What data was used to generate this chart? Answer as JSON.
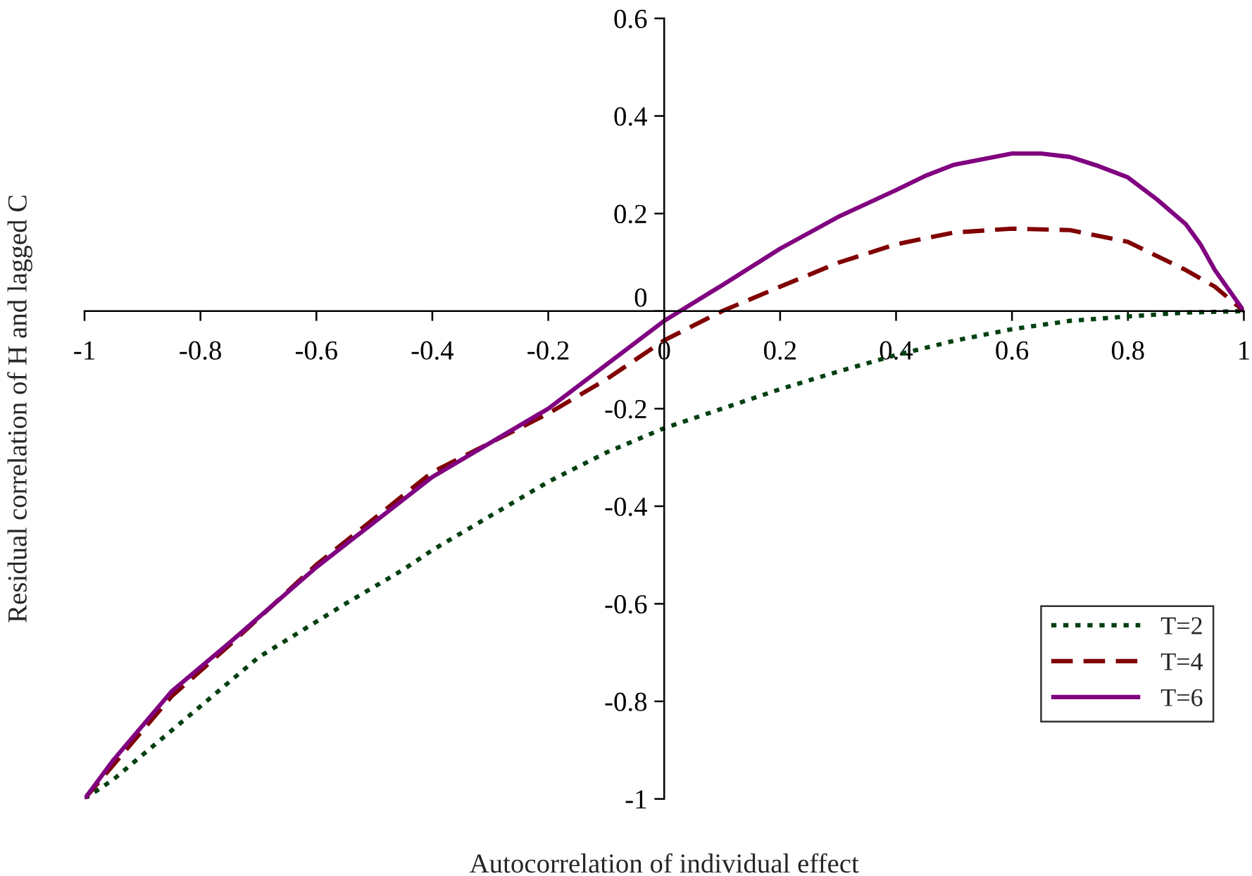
{
  "chart_data": {
    "type": "line",
    "xlabel": "Autocorrelation of individual effect",
    "ylabel": "Residual correlation of H and lagged C",
    "xlim": [
      -1,
      1
    ],
    "ylim": [
      -1,
      0.6
    ],
    "xticks": [
      -1,
      -0.8,
      -0.6,
      -0.4,
      -0.2,
      0,
      0.2,
      0.4,
      0.6,
      0.8,
      1
    ],
    "yticks": [
      -1,
      -0.8,
      -0.6,
      -0.4,
      -0.2,
      0,
      0.2,
      0.4,
      0.6
    ],
    "grid": false,
    "legend": "bottom right",
    "marker": "none",
    "series": [
      {
        "name": "T=2",
        "color": "#004010",
        "line_style": "dotted",
        "x": [
          -1,
          -0.95,
          -0.85,
          -0.7,
          -0.55,
          -0.45,
          -0.4,
          -0.3,
          -0.2,
          -0.1,
          0,
          0.1,
          0.2,
          0.3,
          0.4,
          0.5,
          0.6,
          0.7,
          0.8,
          0.9,
          1
        ],
        "values": [
          -1,
          -0.96,
          -0.86,
          -0.71,
          -0.6,
          -0.53,
          -0.49,
          -0.42,
          -0.35,
          -0.29,
          -0.24,
          -0.2,
          -0.16,
          -0.124,
          -0.09,
          -0.061,
          -0.037,
          -0.02,
          -0.011,
          -0.003,
          0
        ]
      },
      {
        "name": "T=4",
        "color": "#800000",
        "line_style": "dashed",
        "x": [
          -1,
          -0.85,
          -0.75,
          -0.6,
          -0.4,
          -0.2,
          -0.1,
          0,
          0.1,
          0.2,
          0.3,
          0.4,
          0.5,
          0.6,
          0.7,
          0.8,
          0.9,
          0.95,
          1
        ],
        "values": [
          -1,
          -0.79,
          -0.685,
          -0.52,
          -0.33,
          -0.21,
          -0.14,
          -0.06,
          0,
          0.05,
          0.099,
          0.137,
          0.161,
          0.169,
          0.166,
          0.142,
          0.084,
          0.05,
          0
        ]
      },
      {
        "name": "T=6",
        "color": "#800080",
        "line_style": "solid",
        "x": [
          -1,
          -0.95,
          -0.85,
          -0.75,
          -0.6,
          -0.4,
          -0.2,
          0,
          0.1,
          0.2,
          0.3,
          0.4,
          0.45,
          0.5,
          0.6,
          0.65,
          0.7,
          0.75,
          0.8,
          0.85,
          0.9,
          0.925,
          0.95,
          1
        ],
        "values": [
          -1,
          -0.92,
          -0.78,
          -0.68,
          -0.525,
          -0.34,
          -0.2,
          -0.02,
          0.053,
          0.128,
          0.193,
          0.248,
          0.277,
          0.3,
          0.323,
          0.323,
          0.316,
          0.297,
          0.274,
          0.229,
          0.178,
          0.137,
          0.084,
          0
        ]
      }
    ]
  }
}
